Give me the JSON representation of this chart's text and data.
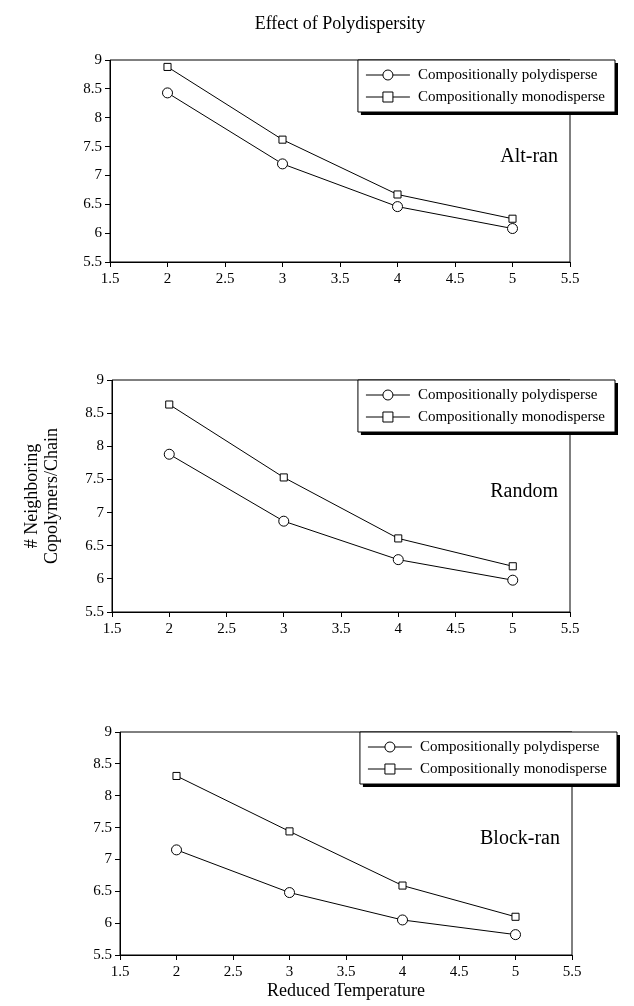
{
  "chart_data": [
    {
      "type": "line",
      "title": "Effect of Polydispersity",
      "x": [
        2,
        3,
        4,
        5
      ],
      "series": [
        {
          "name": "Compositionally polydisperse",
          "color": "#000000",
          "marker": "circle",
          "values": [
            8.43,
            7.2,
            6.46,
            6.08
          ]
        },
        {
          "name": "Compositionally monodisperse",
          "color": "#000000",
          "marker": "square",
          "values": [
            8.88,
            7.62,
            6.67,
            6.25
          ]
        }
      ],
      "xlim": [
        1.5,
        5.5
      ],
      "xticks": [
        1.5,
        2,
        2.5,
        3,
        3.5,
        4,
        4.5,
        5,
        5.5
      ],
      "ylim": [
        5.5,
        9
      ],
      "yticks": [
        5.5,
        6,
        6.5,
        7,
        7.5,
        8,
        8.5,
        9
      ],
      "grid": false,
      "legend": "top right",
      "line_style": "solid",
      "annotations": [
        "Alt-ran"
      ]
    },
    {
      "type": "line",
      "ylabel": "# Neighboring\nCopolymers/Chain",
      "x": [
        2,
        3,
        4,
        5
      ],
      "series": [
        {
          "name": "Compositionally polydisperse",
          "color": "#000000",
          "marker": "circle",
          "values": [
            7.88,
            6.87,
            6.29,
            5.98
          ]
        },
        {
          "name": "Compositionally monodisperse",
          "color": "#000000",
          "marker": "square",
          "values": [
            8.63,
            7.53,
            6.61,
            6.19
          ]
        }
      ],
      "xlim": [
        1.5,
        5.5
      ],
      "xticks": [
        1.5,
        2,
        2.5,
        3,
        3.5,
        4,
        4.5,
        5,
        5.5
      ],
      "ylim": [
        5.5,
        9
      ],
      "yticks": [
        5.5,
        6,
        6.5,
        7,
        7.5,
        8,
        8.5,
        9
      ],
      "grid": false,
      "legend": "top right",
      "line_style": "solid",
      "annotations": [
        "Random"
      ]
    },
    {
      "type": "line",
      "xlabel": "Reduced Temperature",
      "x": [
        2,
        3,
        4,
        5
      ],
      "series": [
        {
          "name": "Compositionally polydisperse",
          "color": "#000000",
          "marker": "circle",
          "values": [
            7.15,
            6.48,
            6.05,
            5.82
          ]
        },
        {
          "name": "Compositionally monodisperse",
          "color": "#000000",
          "marker": "square",
          "values": [
            8.31,
            7.44,
            6.59,
            6.1
          ]
        }
      ],
      "xlim": [
        1.5,
        5.5
      ],
      "xticks": [
        1.5,
        2,
        2.5,
        3,
        3.5,
        4,
        4.5,
        5,
        5.5
      ],
      "ylim": [
        5.5,
        9
      ],
      "yticks": [
        5.5,
        6,
        6.5,
        7,
        7.5,
        8,
        8.5,
        9
      ],
      "grid": false,
      "legend": "top right",
      "line_style": "solid",
      "annotations": [
        "Block-ran"
      ]
    }
  ]
}
